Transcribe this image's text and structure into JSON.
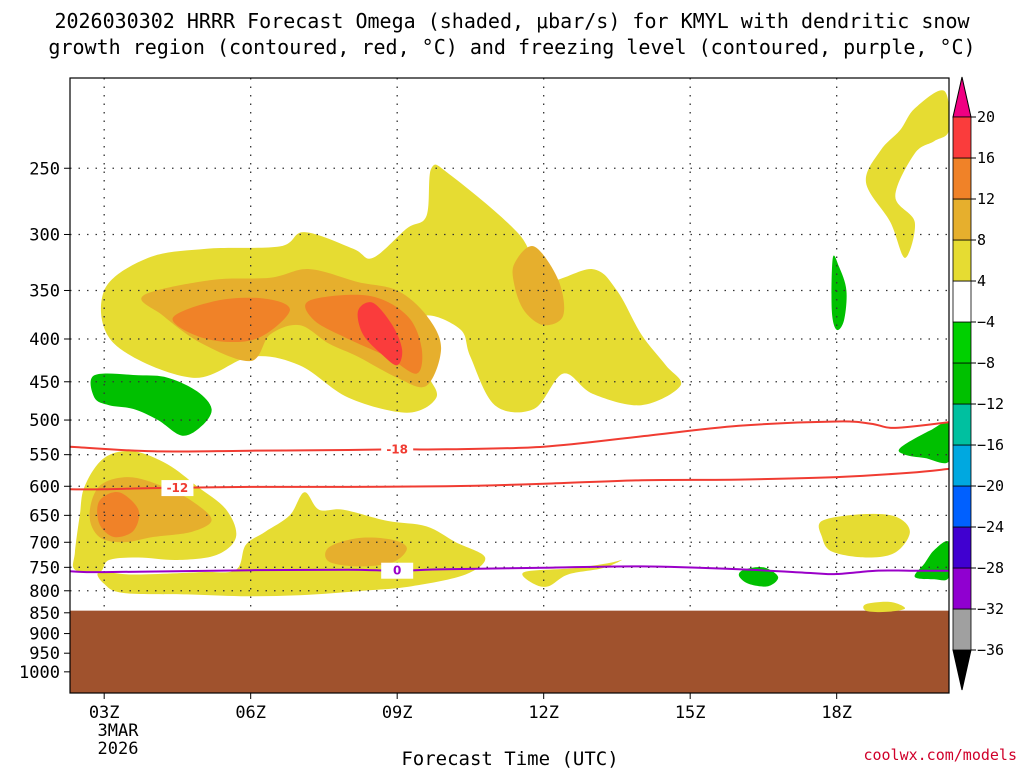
{
  "chart_data": {
    "type": "time-pressure cross section (shaded contour)",
    "title_line1": "2026030302 HRRR Forecast Omega (shaded, μbar/s) for KMYL with dendritic snow",
    "title_line2": "growth region (contoured, red, °C) and freezing level (contoured, purple, °C)",
    "xlabel": "Forecast Time (UTC)",
    "x_date_line1": "3MAR",
    "x_date_line2": "2026",
    "credit": "coolwx.com/models",
    "x_range_hours": [
      2.3,
      20.3
    ],
    "y_range_mb": [
      195,
      1060
    ],
    "x_ticks": [
      {
        "h": 3,
        "label": "03Z"
      },
      {
        "h": 6,
        "label": "06Z"
      },
      {
        "h": 9,
        "label": "09Z"
      },
      {
        "h": 12,
        "label": "12Z"
      },
      {
        "h": 15,
        "label": "15Z"
      },
      {
        "h": 18,
        "label": "18Z"
      }
    ],
    "y_ticks": [
      {
        "p": 250,
        "label": "250"
      },
      {
        "p": 300,
        "label": "300"
      },
      {
        "p": 350,
        "label": "350"
      },
      {
        "p": 400,
        "label": "400"
      },
      {
        "p": 450,
        "label": "450"
      },
      {
        "p": 500,
        "label": "500"
      },
      {
        "p": 550,
        "label": "550"
      },
      {
        "p": 600,
        "label": "600"
      },
      {
        "p": 650,
        "label": "650"
      },
      {
        "p": 700,
        "label": "700"
      },
      {
        "p": 750,
        "label": "750"
      },
      {
        "p": 800,
        "label": "800"
      },
      {
        "p": 850,
        "label": "850"
      },
      {
        "p": 900,
        "label": "900"
      },
      {
        "p": 950,
        "label": "950"
      },
      {
        "p": 1000,
        "label": "1000"
      }
    ],
    "gridlines": true,
    "terrain_below_mb": 845,
    "terrain_color": "#a0522d",
    "colorbar": {
      "levels": [
        -36,
        -32,
        -28,
        -24,
        -20,
        -16,
        -12,
        -8,
        -4,
        4,
        8,
        12,
        16,
        20
      ],
      "colors": [
        "#000000",
        "#a0a0a0",
        "#9000d0",
        "#4000d0",
        "#0060ff",
        "#00a8e0",
        "#00c0a0",
        "#00c000",
        "#00d000",
        "#ffffff",
        "#e6dc32",
        "#e6af2d",
        "#f08228",
        "#fa3c3c",
        "#f00082"
      ]
    },
    "omega_regions": [
      {
        "level": 4,
        "color": "#e6dc32",
        "pts": [
          [
            3,
            350
          ],
          [
            3.9,
            320
          ],
          [
            5.1,
            312
          ],
          [
            6.6,
            310
          ],
          [
            7.1,
            298
          ],
          [
            8.1,
            312
          ],
          [
            8.5,
            320
          ],
          [
            9.2,
            295
          ],
          [
            9.6,
            285
          ],
          [
            9.7,
            250
          ],
          [
            10.1,
            255
          ],
          [
            11.5,
            300
          ],
          [
            12,
            340
          ],
          [
            13,
            330
          ],
          [
            13.5,
            350
          ],
          [
            14,
            395
          ],
          [
            14.5,
            430
          ],
          [
            14.8,
            455
          ],
          [
            14,
            480
          ],
          [
            13,
            465
          ],
          [
            12.4,
            440
          ],
          [
            11.8,
            485
          ],
          [
            11,
            480
          ],
          [
            10.5,
            420
          ],
          [
            10.3,
            390
          ],
          [
            9.6,
            375
          ],
          [
            9.2,
            398
          ],
          [
            9.6,
            440
          ],
          [
            9.8,
            470
          ],
          [
            9.2,
            490
          ],
          [
            8,
            470
          ],
          [
            7,
            430
          ],
          [
            6,
            420
          ],
          [
            4.8,
            445
          ],
          [
            3.2,
            405
          ]
        ]
      },
      {
        "level": 4,
        "color": "#e6dc32",
        "pts": [
          [
            2.6,
            600
          ],
          [
            3,
            555
          ],
          [
            3.6,
            545
          ],
          [
            4.3,
            565
          ],
          [
            4.9,
            600
          ],
          [
            5.5,
            640
          ],
          [
            5.7,
            690
          ],
          [
            5.3,
            725
          ],
          [
            4.5,
            735
          ],
          [
            3.7,
            730
          ],
          [
            3.1,
            735
          ],
          [
            2.9,
            760
          ],
          [
            2.4,
            755
          ],
          [
            2.4,
            720
          ],
          [
            2.5,
            650
          ]
        ]
      },
      {
        "level": 4,
        "color": "#e6dc32",
        "pts": [
          [
            2.9,
            760
          ],
          [
            3.6,
            765
          ],
          [
            5,
            760
          ],
          [
            5.7,
            755
          ],
          [
            5.9,
            705
          ],
          [
            6.3,
            680
          ],
          [
            6.8,
            650
          ],
          [
            7.1,
            610
          ],
          [
            7.4,
            640
          ],
          [
            7.9,
            640
          ],
          [
            8.8,
            660
          ],
          [
            9.6,
            670
          ],
          [
            10.2,
            700
          ],
          [
            10.8,
            730
          ],
          [
            10.4,
            765
          ],
          [
            9.3,
            790
          ],
          [
            8.3,
            800
          ],
          [
            7,
            810
          ],
          [
            5.8,
            812
          ],
          [
            4.7,
            808
          ],
          [
            3.4,
            805
          ],
          [
            3,
            785
          ]
        ]
      },
      {
        "level": 4,
        "color": "#e6dc32",
        "pts": [
          [
            11.6,
            760
          ],
          [
            12.6,
            752
          ],
          [
            13.3,
            742
          ],
          [
            13.6,
            735
          ],
          [
            13.2,
            752
          ],
          [
            12.5,
            765
          ],
          [
            12.1,
            790
          ],
          [
            11.8,
            785
          ]
        ]
      },
      {
        "level": 4,
        "color": "#e6dc32",
        "pts": [
          [
            17.7,
            660
          ],
          [
            18.5,
            648
          ],
          [
            19.2,
            652
          ],
          [
            19.5,
            680
          ],
          [
            19.2,
            720
          ],
          [
            18.6,
            730
          ],
          [
            17.9,
            718
          ],
          [
            17.7,
            690
          ]
        ]
      },
      {
        "level": 4,
        "color": "#e6dc32",
        "pts": [
          [
            18.6,
            830
          ],
          [
            19.1,
            825
          ],
          [
            19.4,
            840
          ],
          [
            19.0,
            848
          ],
          [
            18.6,
            845
          ]
        ]
      },
      {
        "level": 4,
        "color": "#e6dc32",
        "pts": [
          [
            19.6,
            212
          ],
          [
            20.2,
            202
          ],
          [
            20.3,
            225
          ],
          [
            20.0,
            232
          ],
          [
            19.6,
            240
          ],
          [
            19.2,
            270
          ],
          [
            19.6,
            290
          ],
          [
            19.4,
            320
          ],
          [
            19.1,
            290
          ],
          [
            18.6,
            260
          ],
          [
            18.9,
            238
          ],
          [
            19.3,
            225
          ]
        ]
      },
      {
        "level": 8,
        "color": "#e6af2d",
        "pts": [
          [
            3.8,
            355
          ],
          [
            5.2,
            340
          ],
          [
            6.4,
            338
          ],
          [
            7.2,
            330
          ],
          [
            8.2,
            342
          ],
          [
            9,
            350
          ],
          [
            9.6,
            375
          ],
          [
            9.9,
            410
          ],
          [
            9.6,
            455
          ],
          [
            9,
            445
          ],
          [
            8.2,
            420
          ],
          [
            7.6,
            405
          ],
          [
            7.0,
            385
          ],
          [
            6.4,
            395
          ],
          [
            6,
            425
          ],
          [
            5,
            405
          ],
          [
            4.2,
            375
          ]
        ]
      },
      {
        "level": 8,
        "color": "#e6af2d",
        "pts": [
          [
            2.9,
            600
          ],
          [
            3.5,
            585
          ],
          [
            4.2,
            600
          ],
          [
            4.8,
            625
          ],
          [
            5.2,
            658
          ],
          [
            4.8,
            680
          ],
          [
            4.0,
            690
          ],
          [
            3.4,
            700
          ],
          [
            2.9,
            690
          ],
          [
            2.7,
            650
          ]
        ]
      },
      {
        "level": 8,
        "color": "#e6af2d",
        "pts": [
          [
            7.6,
            710
          ],
          [
            8.2,
            692
          ],
          [
            8.9,
            695
          ],
          [
            9.2,
            712
          ],
          [
            8.9,
            740
          ],
          [
            8.2,
            748
          ],
          [
            7.6,
            738
          ]
        ]
      },
      {
        "level": 8,
        "color": "#e6af2d",
        "pts": [
          [
            11.4,
            325
          ],
          [
            11.8,
            310
          ],
          [
            12.3,
            340
          ],
          [
            12.4,
            375
          ],
          [
            12,
            385
          ],
          [
            11.6,
            370
          ],
          [
            11.4,
            345
          ]
        ]
      },
      {
        "level": 12,
        "color": "#f08228",
        "pts": [
          [
            4.4,
            378
          ],
          [
            5.3,
            360
          ],
          [
            6.3,
            358
          ],
          [
            6.8,
            370
          ],
          [
            6.1,
            400
          ],
          [
            5.1,
            400
          ]
        ]
      },
      {
        "level": 12,
        "color": "#f08228",
        "pts": [
          [
            7.2,
            360
          ],
          [
            8.4,
            355
          ],
          [
            9.2,
            375
          ],
          [
            9.5,
            410
          ],
          [
            9.4,
            440
          ],
          [
            8.8,
            420
          ],
          [
            8.0,
            400
          ],
          [
            7.3,
            380
          ]
        ]
      },
      {
        "level": 12,
        "color": "#f08228",
        "pts": [
          [
            2.9,
            625
          ],
          [
            3.3,
            610
          ],
          [
            3.7,
            640
          ],
          [
            3.6,
            678
          ],
          [
            3.2,
            690
          ],
          [
            2.9,
            665
          ]
        ]
      },
      {
        "level": 16,
        "color": "#fa3c3c",
        "pts": [
          [
            8.2,
            370
          ],
          [
            8.5,
            362
          ],
          [
            8.9,
            385
          ],
          [
            9.1,
            412
          ],
          [
            9.0,
            430
          ],
          [
            8.7,
            418
          ],
          [
            8.3,
            395
          ]
        ]
      },
      {
        "level": -4,
        "color": "#00c000",
        "pts": [
          [
            2.8,
            442
          ],
          [
            3.7,
            442
          ],
          [
            4.3,
            445
          ],
          [
            4.9,
            462
          ],
          [
            5.2,
            485
          ],
          [
            5.0,
            508
          ],
          [
            4.6,
            522
          ],
          [
            4.1,
            500
          ],
          [
            3.6,
            485
          ],
          [
            3.1,
            480
          ],
          [
            2.8,
            470
          ]
        ]
      },
      {
        "level": -4,
        "color": "#00c000",
        "pts": [
          [
            17.92,
            320
          ],
          [
            18.05,
            328
          ],
          [
            18.2,
            350
          ],
          [
            18.15,
            380
          ],
          [
            18.0,
            390
          ],
          [
            17.9,
            370
          ]
        ]
      },
      {
        "level": -4,
        "color": "#00c000",
        "pts": [
          [
            19.3,
            540
          ],
          [
            19.9,
            515
          ],
          [
            20.3,
            505
          ],
          [
            20.3,
            560
          ],
          [
            19.8,
            555
          ],
          [
            19.4,
            550
          ]
        ]
      },
      {
        "level": -4,
        "color": "#00c000",
        "pts": [
          [
            20.0,
            715
          ],
          [
            20.3,
            700
          ],
          [
            20.3,
            770
          ],
          [
            20.0,
            775
          ],
          [
            19.6,
            770
          ],
          [
            19.8,
            742
          ]
        ]
      },
      {
        "level": -4,
        "color": "#00c000",
        "pts": [
          [
            16.1,
            755
          ],
          [
            16.5,
            750
          ],
          [
            16.8,
            770
          ],
          [
            16.6,
            790
          ],
          [
            16.2,
            785
          ],
          [
            16.0,
            768
          ]
        ]
      }
    ],
    "contours": [
      {
        "name": "temp-contour-minus18",
        "color": "#f03c32",
        "label": "-18",
        "label_at": [
          9,
          542
        ],
        "pts": [
          [
            2.3,
            538
          ],
          [
            4,
            545
          ],
          [
            6,
            544
          ],
          [
            8,
            543
          ],
          [
            9,
            542
          ],
          [
            10,
            542
          ],
          [
            12,
            538
          ],
          [
            14,
            523
          ],
          [
            16,
            508
          ],
          [
            18,
            502
          ],
          [
            18.7,
            505
          ],
          [
            19.2,
            511
          ],
          [
            20.3,
            503
          ]
        ]
      },
      {
        "name": "temp-contour-minus12",
        "color": "#f03c32",
        "label": "-12",
        "label_at": [
          4.5,
          603
        ],
        "pts": [
          [
            2.3,
            605
          ],
          [
            3,
            605
          ],
          [
            4,
            603
          ],
          [
            6,
            601
          ],
          [
            8,
            601
          ],
          [
            10,
            600
          ],
          [
            12,
            596
          ],
          [
            14,
            590
          ],
          [
            16,
            589
          ],
          [
            18,
            585
          ],
          [
            19.5,
            578
          ],
          [
            20.3,
            572
          ]
        ]
      },
      {
        "name": "freezing-level-contour",
        "color": "#9a00c8",
        "label": "0",
        "label_at": [
          9,
          757
        ],
        "pts": [
          [
            2.3,
            758
          ],
          [
            3,
            760
          ],
          [
            6,
            756
          ],
          [
            8,
            755
          ],
          [
            9,
            757
          ],
          [
            10,
            754
          ],
          [
            12,
            751
          ],
          [
            14,
            748
          ],
          [
            16,
            754
          ],
          [
            17.5,
            762
          ],
          [
            18,
            764
          ],
          [
            18.8,
            757
          ],
          [
            19.5,
            757
          ],
          [
            20.3,
            757
          ]
        ]
      }
    ]
  }
}
